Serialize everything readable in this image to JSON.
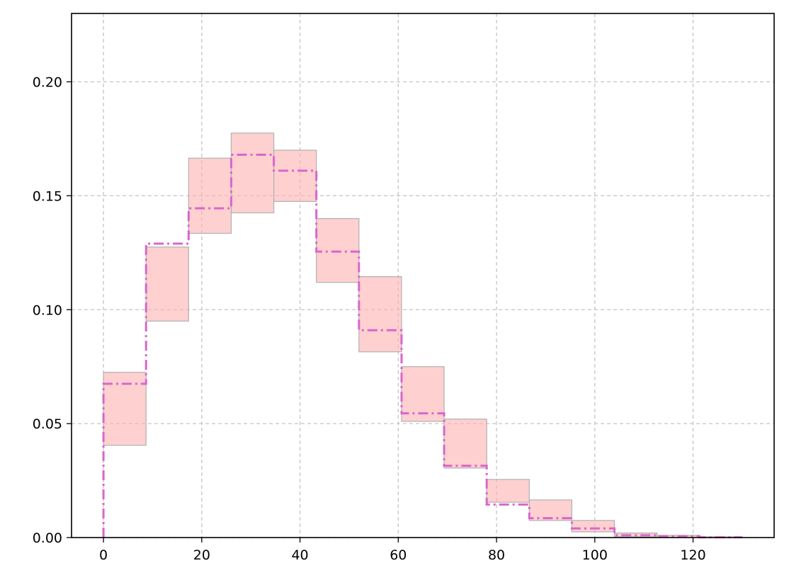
{
  "chart_data": {
    "type": "histogram-step",
    "title": "",
    "xlabel": "",
    "ylabel": "",
    "xlim": [
      -6.5,
      136.5
    ],
    "ylim": [
      0,
      0.23
    ],
    "grid": true,
    "legend": "none",
    "x_ticks": [
      0,
      20,
      40,
      60,
      80,
      100,
      120
    ],
    "x_tick_labels": [
      "0",
      "20",
      "40",
      "60",
      "80",
      "100",
      "120"
    ],
    "y_ticks": [
      0.0,
      0.05,
      0.1,
      0.15,
      0.2
    ],
    "y_tick_labels": [
      "0.00",
      "0.05",
      "0.10",
      "0.15",
      "0.20"
    ],
    "bin_edges": [
      0,
      8.67,
      17.33,
      26.0,
      34.67,
      43.33,
      52.0,
      60.67,
      69.33,
      78.0,
      86.67,
      95.33,
      104.0,
      112.67,
      121.33,
      130.0
    ],
    "step_values": [
      0.0675,
      0.129,
      0.1445,
      0.168,
      0.161,
      0.1255,
      0.091,
      0.0545,
      0.0315,
      0.0145,
      0.0085,
      0.004,
      0.001,
      0.0005,
      0.0001
    ],
    "band_low": [
      0.0405,
      0.095,
      0.1335,
      0.1425,
      0.1475,
      0.112,
      0.0815,
      0.051,
      0.0305,
      0.0155,
      0.0075,
      0.0025,
      0.0003,
      0.0001,
      0.0
    ],
    "band_high": [
      0.0725,
      0.1275,
      0.1665,
      0.1775,
      0.17,
      0.14,
      0.1145,
      0.075,
      0.052,
      0.0255,
      0.0165,
      0.0075,
      0.002,
      0.001,
      0.0003
    ],
    "colors": {
      "band_fill": "#ffb0b0",
      "band_edge": "#b0b0b0",
      "step_line": "#d966cc",
      "grid": "#c4c4c4",
      "axes": "#000000"
    }
  }
}
